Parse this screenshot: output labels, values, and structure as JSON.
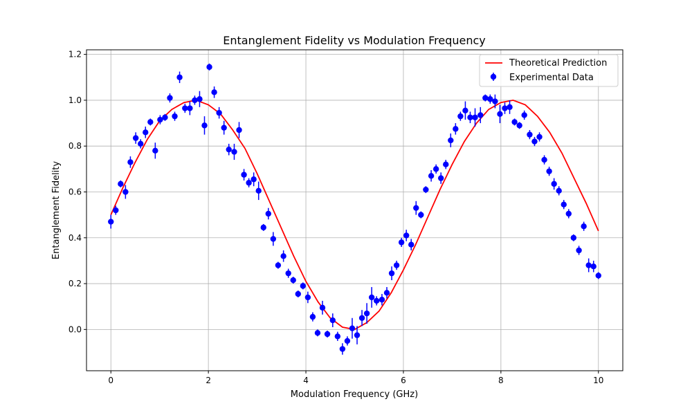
{
  "chart_data": {
    "type": "scatter",
    "title": "Entanglement Fidelity vs Modulation Frequency",
    "xlabel": "Modulation Frequency (GHz)",
    "ylabel": "Entanglement Fidelity",
    "xlim": [
      -0.5,
      10.5
    ],
    "ylim": [
      -0.18,
      1.22
    ],
    "xticks": [
      0,
      2,
      4,
      6,
      8,
      10
    ],
    "yticks": [
      0.0,
      0.2,
      0.4,
      0.6,
      0.8,
      1.0,
      1.2
    ],
    "xtick_labels": [
      "0",
      "2",
      "4",
      "6",
      "8",
      "10"
    ],
    "ytick_labels": [
      "0.0",
      "0.2",
      "0.4",
      "0.6",
      "0.8",
      "1.0",
      "1.2"
    ],
    "grid": true,
    "legend_position": "top-right",
    "colors": {
      "data": "#0000ff",
      "theory": "#ff0000"
    },
    "series": [
      {
        "name": "Experimental Data",
        "kind": "scatter-errorbar",
        "x": [
          0.0,
          0.1,
          0.2,
          0.3,
          0.4,
          0.51,
          0.61,
          0.71,
          0.81,
          0.91,
          1.01,
          1.11,
          1.21,
          1.31,
          1.41,
          1.52,
          1.62,
          1.72,
          1.82,
          1.92,
          2.02,
          2.12,
          2.22,
          2.32,
          2.42,
          2.53,
          2.63,
          2.73,
          2.83,
          2.93,
          3.03,
          3.13,
          3.23,
          3.33,
          3.43,
          3.54,
          3.64,
          3.74,
          3.84,
          3.94,
          4.04,
          4.14,
          4.24,
          4.34,
          4.44,
          4.55,
          4.65,
          4.75,
          4.85,
          4.95,
          5.05,
          5.15,
          5.25,
          5.35,
          5.45,
          5.56,
          5.66,
          5.76,
          5.86,
          5.96,
          6.06,
          6.16,
          6.26,
          6.36,
          6.46,
          6.57,
          6.67,
          6.77,
          6.87,
          6.97,
          7.07,
          7.17,
          7.27,
          7.37,
          7.47,
          7.58,
          7.68,
          7.78,
          7.88,
          7.98,
          8.08,
          8.18,
          8.28,
          8.38,
          8.48,
          8.59,
          8.69,
          8.79,
          8.89,
          8.99,
          9.09,
          9.19,
          9.29,
          9.39,
          9.49,
          9.6,
          9.7,
          9.8,
          9.9,
          10.0
        ],
        "y": [
          0.47,
          0.52,
          0.635,
          0.6,
          0.73,
          0.835,
          0.81,
          0.86,
          0.905,
          0.78,
          0.915,
          0.925,
          1.01,
          0.93,
          1.1,
          0.965,
          0.965,
          1.0,
          1.005,
          0.89,
          1.145,
          1.035,
          0.945,
          0.88,
          0.785,
          0.775,
          0.87,
          0.675,
          0.64,
          0.655,
          0.605,
          0.445,
          0.505,
          0.395,
          0.28,
          0.32,
          0.245,
          0.215,
          0.155,
          0.19,
          0.14,
          0.055,
          -0.015,
          0.095,
          -0.02,
          0.04,
          -0.03,
          -0.085,
          -0.05,
          0.005,
          -0.025,
          0.05,
          0.07,
          0.14,
          0.125,
          0.13,
          0.16,
          0.245,
          0.28,
          0.38,
          0.41,
          0.37,
          0.53,
          0.5,
          0.61,
          0.67,
          0.7,
          0.66,
          0.72,
          0.825,
          0.875,
          0.93,
          0.955,
          0.925,
          0.925,
          0.935,
          1.01,
          1.005,
          0.995,
          0.94,
          0.965,
          0.97,
          0.905,
          0.89,
          0.935,
          0.85,
          0.82,
          0.84,
          0.74,
          0.69,
          0.635,
          0.605,
          0.545,
          0.505,
          0.4,
          0.345,
          0.45,
          0.28,
          0.275,
          0.235
        ],
        "yerr": [
          0.03,
          0.02,
          0.015,
          0.03,
          0.025,
          0.025,
          0.02,
          0.025,
          0.015,
          0.035,
          0.02,
          0.015,
          0.02,
          0.02,
          0.025,
          0.02,
          0.03,
          0.02,
          0.035,
          0.04,
          0.015,
          0.025,
          0.025,
          0.03,
          0.025,
          0.035,
          0.035,
          0.025,
          0.02,
          0.03,
          0.04,
          0.015,
          0.025,
          0.03,
          0.015,
          0.025,
          0.02,
          0.015,
          0.015,
          0.015,
          0.025,
          0.02,
          0.015,
          0.03,
          0.015,
          0.03,
          0.02,
          0.025,
          0.02,
          0.045,
          0.04,
          0.035,
          0.045,
          0.045,
          0.02,
          0.025,
          0.025,
          0.03,
          0.02,
          0.02,
          0.025,
          0.025,
          0.03,
          0.015,
          0.015,
          0.025,
          0.02,
          0.025,
          0.02,
          0.03,
          0.025,
          0.02,
          0.04,
          0.025,
          0.04,
          0.035,
          0.015,
          0.02,
          0.03,
          0.04,
          0.025,
          0.03,
          0.015,
          0.015,
          0.02,
          0.02,
          0.02,
          0.02,
          0.02,
          0.02,
          0.025,
          0.02,
          0.02,
          0.02,
          0.015,
          0.02,
          0.02,
          0.03,
          0.025,
          0.015
        ]
      },
      {
        "name": "Theoretical Prediction",
        "kind": "line",
        "x": [
          0,
          0.25,
          0.5,
          0.75,
          1,
          1.25,
          1.5,
          1.75,
          2,
          2.25,
          2.5,
          2.75,
          3,
          3.25,
          3.5,
          3.75,
          4,
          4.25,
          4.5,
          4.75,
          5,
          5.25,
          5.5,
          5.75,
          6,
          6.25,
          6.5,
          6.75,
          7,
          7.25,
          7.5,
          7.75,
          8,
          8.25,
          8.5,
          8.75,
          9,
          9.25,
          9.5,
          9.75,
          10
        ],
        "y": [
          0.5,
          0.62,
          0.73,
          0.83,
          0.91,
          0.96,
          0.99,
          1.0,
          0.98,
          0.94,
          0.87,
          0.79,
          0.68,
          0.56,
          0.44,
          0.32,
          0.21,
          0.12,
          0.05,
          0.01,
          0.0,
          0.03,
          0.08,
          0.16,
          0.26,
          0.37,
          0.49,
          0.61,
          0.72,
          0.82,
          0.9,
          0.96,
          0.99,
          1.0,
          0.98,
          0.93,
          0.86,
          0.77,
          0.66,
          0.55,
          0.43
        ]
      }
    ]
  }
}
